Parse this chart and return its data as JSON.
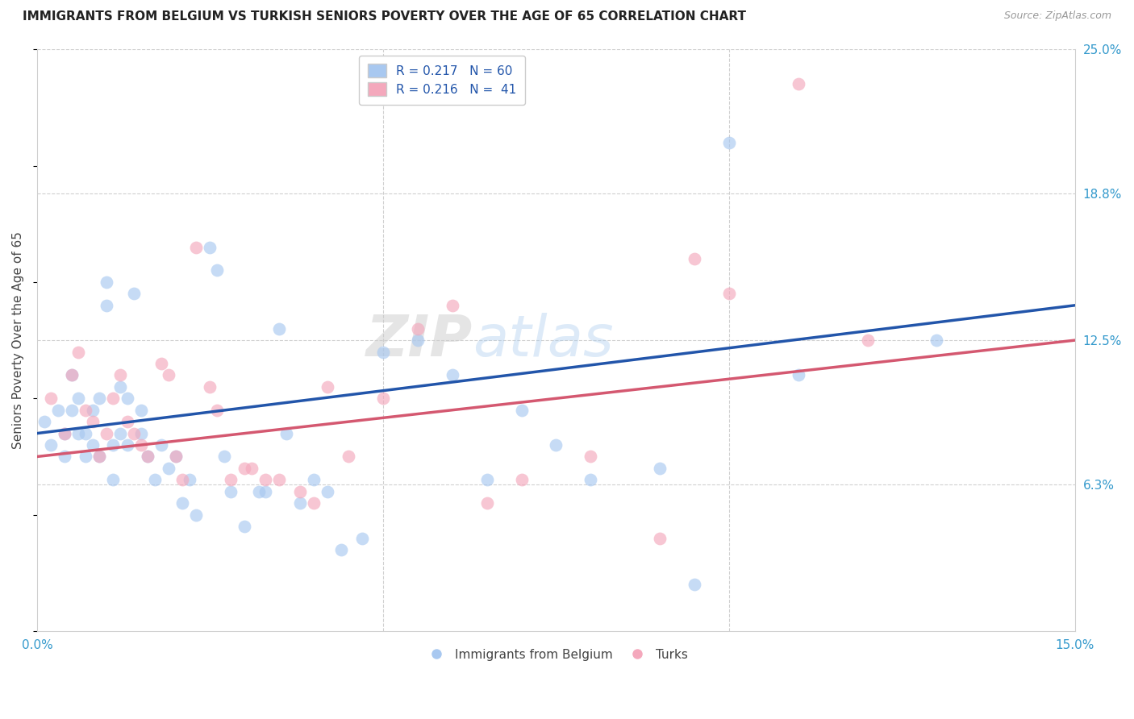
{
  "title": "IMMIGRANTS FROM BELGIUM VS TURKISH SENIORS POVERTY OVER THE AGE OF 65 CORRELATION CHART",
  "source": "Source: ZipAtlas.com",
  "ylabel": "Seniors Poverty Over the Age of 65",
  "x_min": 0.0,
  "x_max": 0.15,
  "y_min": 0.0,
  "y_max": 0.25,
  "y_tick_labels_right": [
    "6.3%",
    "12.5%",
    "18.8%",
    "25.0%"
  ],
  "y_tick_positions_right": [
    0.063,
    0.125,
    0.188,
    0.25
  ],
  "legend_labels_bottom": [
    "Immigrants from Belgium",
    "Turks"
  ],
  "watermark": "ZIPatlas",
  "belgium_color": "#a8c8f0",
  "turks_color": "#f4a8bc",
  "belgium_line_color": "#2255aa",
  "turks_line_color": "#d45870",
  "grid_color": "#d0d0d0",
  "R_belgium": 0.217,
  "N_belgium": 60,
  "R_turks": 0.216,
  "N_turks": 41,
  "belgium_line_x0": 0.0,
  "belgium_line_y0": 0.085,
  "belgium_line_x1": 0.15,
  "belgium_line_y1": 0.14,
  "turks_line_x0": 0.0,
  "turks_line_y0": 0.075,
  "turks_line_x1": 0.15,
  "turks_line_y1": 0.125,
  "belgium_x": [
    0.001,
    0.002,
    0.003,
    0.004,
    0.004,
    0.005,
    0.005,
    0.006,
    0.006,
    0.007,
    0.007,
    0.008,
    0.008,
    0.009,
    0.009,
    0.01,
    0.01,
    0.011,
    0.011,
    0.012,
    0.012,
    0.013,
    0.013,
    0.014,
    0.015,
    0.015,
    0.016,
    0.017,
    0.018,
    0.019,
    0.02,
    0.021,
    0.022,
    0.023,
    0.025,
    0.026,
    0.027,
    0.028,
    0.03,
    0.032,
    0.033,
    0.035,
    0.036,
    0.038,
    0.04,
    0.042,
    0.044,
    0.047,
    0.05,
    0.055,
    0.06,
    0.065,
    0.07,
    0.075,
    0.08,
    0.09,
    0.095,
    0.1,
    0.11,
    0.13
  ],
  "belgium_y": [
    0.09,
    0.08,
    0.095,
    0.085,
    0.075,
    0.11,
    0.095,
    0.1,
    0.085,
    0.085,
    0.075,
    0.095,
    0.08,
    0.1,
    0.075,
    0.15,
    0.14,
    0.08,
    0.065,
    0.105,
    0.085,
    0.1,
    0.08,
    0.145,
    0.095,
    0.085,
    0.075,
    0.065,
    0.08,
    0.07,
    0.075,
    0.055,
    0.065,
    0.05,
    0.165,
    0.155,
    0.075,
    0.06,
    0.045,
    0.06,
    0.06,
    0.13,
    0.085,
    0.055,
    0.065,
    0.06,
    0.035,
    0.04,
    0.12,
    0.125,
    0.11,
    0.065,
    0.095,
    0.08,
    0.065,
    0.07,
    0.02,
    0.21,
    0.11,
    0.125
  ],
  "turks_x": [
    0.002,
    0.004,
    0.005,
    0.006,
    0.007,
    0.008,
    0.009,
    0.01,
    0.011,
    0.012,
    0.013,
    0.014,
    0.015,
    0.016,
    0.018,
    0.019,
    0.02,
    0.021,
    0.023,
    0.025,
    0.026,
    0.028,
    0.03,
    0.031,
    0.033,
    0.035,
    0.038,
    0.04,
    0.042,
    0.045,
    0.05,
    0.055,
    0.06,
    0.065,
    0.07,
    0.08,
    0.09,
    0.095,
    0.1,
    0.11,
    0.12
  ],
  "turks_y": [
    0.1,
    0.085,
    0.11,
    0.12,
    0.095,
    0.09,
    0.075,
    0.085,
    0.1,
    0.11,
    0.09,
    0.085,
    0.08,
    0.075,
    0.115,
    0.11,
    0.075,
    0.065,
    0.165,
    0.105,
    0.095,
    0.065,
    0.07,
    0.07,
    0.065,
    0.065,
    0.06,
    0.055,
    0.105,
    0.075,
    0.1,
    0.13,
    0.14,
    0.055,
    0.065,
    0.075,
    0.04,
    0.16,
    0.145,
    0.235,
    0.125
  ]
}
